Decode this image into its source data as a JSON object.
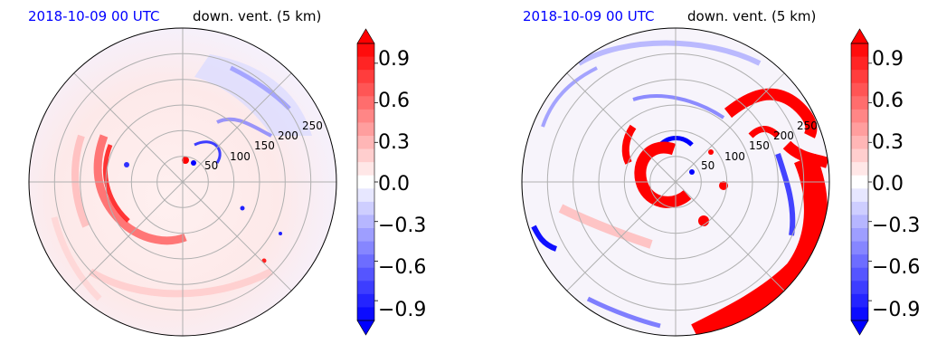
{
  "colors": {
    "positive": "#ff0000",
    "negative": "#0000ff",
    "neutral": "#ffffff",
    "grid": "#b0b0b0",
    "date_text": "#0000ff"
  },
  "chart_data": [
    {
      "type": "heatmap",
      "projection": "polar",
      "title_date": "2018-10-09 00 UTC",
      "title_var": "down. vent. (5 km)",
      "radial_ticks": [
        "50",
        "100",
        "150",
        "200",
        "250"
      ],
      "radial_tick_values": [
        50,
        100,
        150,
        200,
        250
      ],
      "rlim": [
        0,
        300
      ],
      "angular_grid_deg": [
        0,
        45,
        90,
        135,
        180,
        225,
        270,
        315
      ],
      "grid": true,
      "colorbar": {
        "vmin": -1.05,
        "vmax": 1.05,
        "extend": "both",
        "levels": 21,
        "ticks": [
          0.9,
          0.6,
          0.3,
          0.0,
          -0.3,
          -0.6,
          -0.9
        ],
        "tick_labels": [
          "0.9",
          "0.6",
          "0.3",
          "0.0",
          "−0.3",
          "−0.6",
          "−0.9"
        ]
      }
    },
    {
      "type": "heatmap",
      "projection": "polar",
      "title_date": "2018-10-09 00 UTC",
      "title_var": "down. vent. (5 km)",
      "radial_ticks": [
        "50",
        "100",
        "150",
        "200",
        "250"
      ],
      "radial_tick_values": [
        50,
        100,
        150,
        200,
        250
      ],
      "rlim": [
        0,
        300
      ],
      "angular_grid_deg": [
        0,
        45,
        90,
        135,
        180,
        225,
        270,
        315
      ],
      "grid": true,
      "colorbar": {
        "vmin": -1.05,
        "vmax": 1.05,
        "extend": "both",
        "levels": 21,
        "ticks": [
          0.9,
          0.6,
          0.3,
          0.0,
          -0.3,
          -0.6,
          -0.9
        ],
        "tick_labels": [
          "0.9",
          "0.6",
          "0.3",
          "0.0",
          "−0.3",
          "−0.6",
          "−0.9"
        ]
      }
    }
  ]
}
